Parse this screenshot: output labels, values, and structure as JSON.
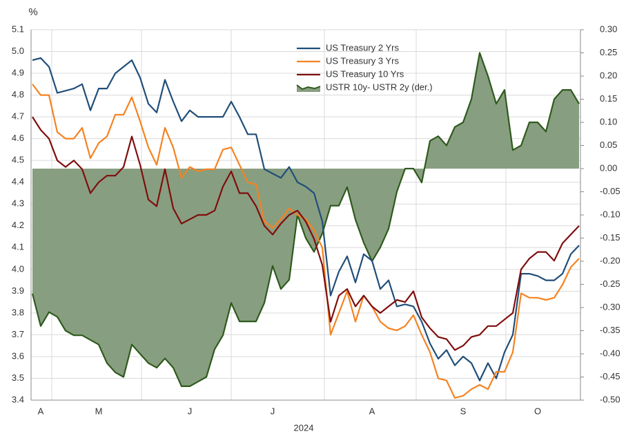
{
  "chart_data": {
    "type": "line",
    "y_label": "%",
    "x_label": "2024",
    "categories": [
      null,
      "A",
      null,
      null,
      null,
      null,
      null,
      null,
      "M",
      null,
      null,
      null,
      null,
      null,
      null,
      null,
      null,
      null,
      null,
      "J",
      null,
      null,
      null,
      null,
      null,
      null,
      null,
      null,
      null,
      "J",
      null,
      null,
      null,
      null,
      null,
      null,
      null,
      null,
      null,
      null,
      null,
      "A",
      null,
      null,
      null,
      null,
      null,
      null,
      null,
      null,
      null,
      null,
      "S",
      null,
      null,
      null,
      null,
      null,
      null,
      null,
      null,
      "O",
      null,
      null,
      null,
      null,
      null
    ],
    "series": [
      {
        "name": "US Treasury 2 Yrs",
        "color": "#1f4e79",
        "values": [
          4.96,
          4.97,
          4.93,
          4.81,
          4.82,
          4.83,
          4.85,
          4.73,
          4.83,
          4.83,
          4.9,
          4.93,
          4.96,
          4.88,
          4.76,
          4.72,
          4.87,
          4.77,
          4.68,
          4.73,
          4.7,
          4.7,
          4.7,
          4.7,
          4.77,
          4.7,
          4.62,
          4.62,
          4.46,
          4.44,
          4.42,
          4.47,
          4.4,
          4.38,
          4.35,
          4.22,
          3.88,
          3.99,
          4.06,
          3.94,
          4.07,
          4.04,
          3.91,
          3.95,
          3.83,
          3.84,
          3.83,
          3.76,
          3.66,
          3.59,
          3.63,
          3.56,
          3.6,
          3.57,
          3.49,
          3.57,
          3.5,
          3.62,
          3.7,
          3.98,
          3.98,
          3.97,
          3.95,
          3.95,
          3.98,
          4.07,
          4.11
        ]
      },
      {
        "name": "US Treasury 3 Yrs",
        "color": "#f58220",
        "values": [
          4.85,
          4.8,
          4.8,
          4.63,
          4.6,
          4.6,
          4.65,
          4.51,
          4.58,
          4.61,
          4.71,
          4.71,
          4.79,
          4.68,
          4.56,
          4.48,
          4.65,
          4.56,
          4.42,
          4.47,
          4.45,
          4.46,
          4.46,
          4.55,
          4.56,
          4.48,
          4.4,
          4.39,
          4.22,
          4.19,
          4.23,
          4.28,
          4.25,
          4.23,
          4.18,
          4.1,
          3.7,
          3.8,
          3.9,
          3.76,
          3.88,
          3.83,
          3.76,
          3.73,
          3.72,
          3.74,
          3.79,
          3.7,
          3.62,
          3.5,
          3.49,
          3.41,
          3.42,
          3.45,
          3.47,
          3.45,
          3.53,
          3.53,
          3.62,
          3.89,
          3.87,
          3.87,
          3.86,
          3.87,
          3.93,
          4.01,
          4.05
        ]
      },
      {
        "name": "US Treasury 10 Yrs",
        "color": "#7f0d0d",
        "values": [
          4.7,
          4.64,
          4.6,
          4.5,
          4.47,
          4.5,
          4.46,
          4.35,
          4.4,
          4.43,
          4.43,
          4.47,
          4.61,
          4.48,
          4.32,
          4.29,
          4.46,
          4.28,
          4.21,
          4.23,
          4.25,
          4.25,
          4.27,
          4.38,
          4.45,
          4.35,
          4.35,
          4.29,
          4.2,
          4.16,
          4.21,
          4.25,
          4.27,
          4.22,
          4.14,
          4.02,
          3.76,
          3.88,
          3.91,
          3.83,
          3.88,
          3.83,
          3.8,
          3.83,
          3.86,
          3.85,
          3.9,
          3.78,
          3.73,
          3.69,
          3.68,
          3.63,
          3.65,
          3.69,
          3.7,
          3.74,
          3.74,
          3.77,
          3.8,
          4.0,
          4.05,
          4.08,
          4.08,
          4.04,
          4.12,
          4.16,
          4.2
        ]
      },
      {
        "name": "USTR 10y- USTR 2y (der.)",
        "color": "#2e5a1c",
        "fill": "#889e80",
        "axis": "y2",
        "values": [
          -0.27,
          -0.34,
          -0.31,
          -0.32,
          -0.35,
          -0.36,
          -0.36,
          -0.37,
          -0.38,
          -0.42,
          -0.44,
          -0.45,
          -0.38,
          -0.4,
          -0.42,
          -0.43,
          -0.41,
          -0.43,
          -0.47,
          -0.47,
          -0.46,
          -0.45,
          -0.39,
          -0.36,
          -0.29,
          -0.33,
          -0.33,
          -0.33,
          -0.29,
          -0.21,
          -0.26,
          -0.24,
          -0.1,
          -0.15,
          -0.18,
          -0.14,
          -0.08,
          -0.08,
          -0.04,
          -0.11,
          -0.16,
          -0.2,
          -0.17,
          -0.13,
          -0.05,
          0.0,
          0.0,
          -0.03,
          0.06,
          0.07,
          0.05,
          0.09,
          0.1,
          0.15,
          0.25,
          0.2,
          0.14,
          0.17,
          0.04,
          0.05,
          0.1,
          0.1,
          0.08,
          0.15,
          0.17,
          0.17,
          0.14
        ]
      }
    ],
    "ylim": [
      3.4,
      5.1
    ],
    "yticks": [
      3.4,
      3.5,
      3.6,
      3.7,
      3.8,
      3.9,
      {
        "value": 4.0,
        "label": "4.0"
      },
      4.1,
      4.2,
      4.3,
      4.4,
      4.5,
      4.6,
      4.7,
      4.8,
      4.9,
      {
        "value": 5.0,
        "label": "5.0"
      },
      5.1
    ],
    "y2lim": [
      -0.5,
      0.3
    ],
    "y2ticks": [
      {
        "value": -0.5,
        "label": "-0.50"
      },
      -0.45,
      {
        "value": -0.4,
        "label": "-0.40"
      },
      -0.35,
      {
        "value": -0.3,
        "label": "-0.30"
      },
      -0.25,
      {
        "value": -0.2,
        "label": "-0.20"
      },
      -0.15,
      {
        "value": -0.1,
        "label": "-0.10"
      },
      -0.05,
      {
        "value": 0,
        "label": "0.00"
      },
      0.05,
      {
        "value": 0.1,
        "label": "0.10"
      },
      0.15,
      {
        "value": 0.2,
        "label": "0.20"
      },
      0.25,
      {
        "value": 0.3,
        "label": "0.30"
      }
    ],
    "grid": true,
    "legend": "top"
  }
}
